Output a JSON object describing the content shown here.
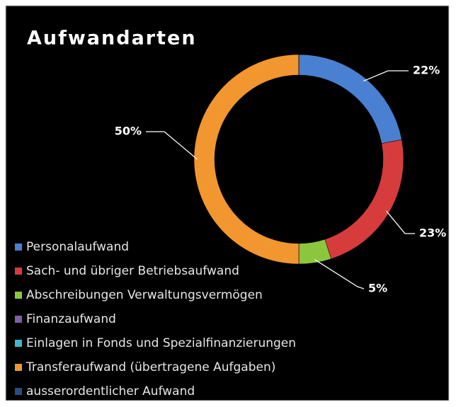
{
  "chart_data": {
    "type": "donut",
    "title": "Aufwandarten",
    "categories": [
      "Personalaufwand",
      "Sach- und übriger Betriebsaufwand",
      "Abschreibungen Verwaltungsvermögen",
      "Finanzaufwand",
      "Einlagen in Fonds und Spezialfinanzierungen",
      "Transferaufwand (übertragene Aufgaben)",
      "ausserordentlicher Aufwand"
    ],
    "values": [
      22,
      23,
      5,
      0,
      0,
      50,
      0
    ],
    "value_labels": [
      "22%",
      "23%",
      "5%",
      null,
      null,
      "50%",
      null
    ],
    "colors": [
      "#4a80d2",
      "#d63c3c",
      "#8cc63e",
      "#7e5fa8",
      "#3fb7cf",
      "#f29630",
      "#2b4b82"
    ],
    "legend": "left"
  }
}
